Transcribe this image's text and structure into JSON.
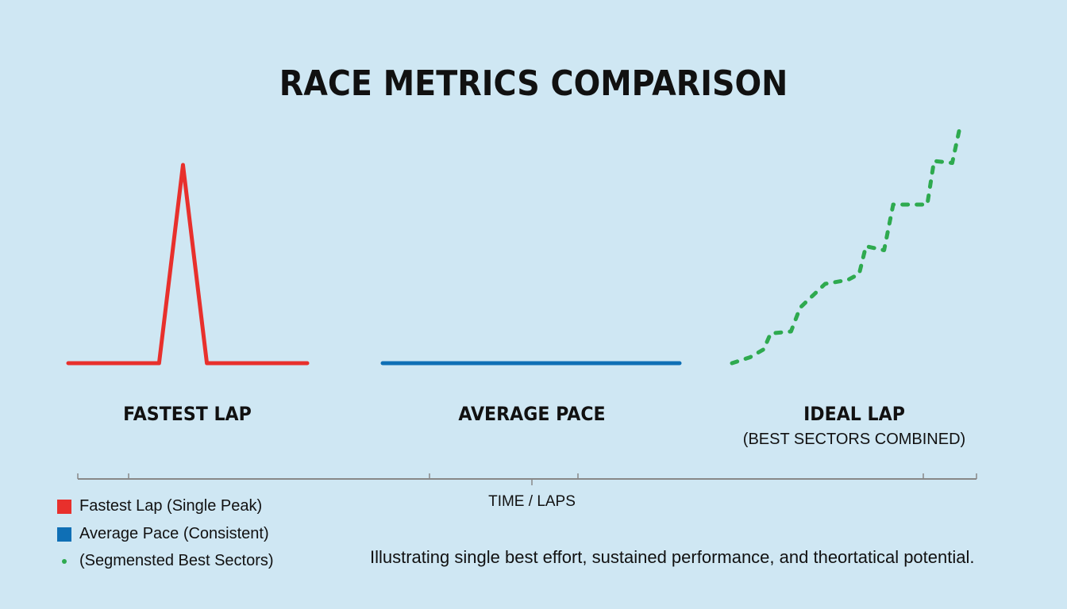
{
  "title": "RACE METRICS COMPARISON",
  "panels": [
    {
      "label": "FASTEST LAP",
      "sublabel": ""
    },
    {
      "label": "AVERAGE PACE",
      "sublabel": ""
    },
    {
      "label": "IDEAL LAP",
      "sublabel": "(BEST SECTORS COMBINED)"
    }
  ],
  "axis": {
    "label": "TIME / LAPS"
  },
  "legend": [
    {
      "label": "Fastest Lap (Single Peak)",
      "color": "#e8302c",
      "marker": "square"
    },
    {
      "label": "Average Pace (Consistent)",
      "color": "#0f6fb5",
      "marker": "square"
    },
    {
      "label": "(Segmensted Best Sectors)",
      "color": "#2eaa4f",
      "marker": "dot"
    }
  ],
  "caption": "Illustrating single best effort, sustained performance, and theortatical potential.",
  "chart_data": {
    "type": "line",
    "title": "RACE METRICS COMPARISON",
    "xlabel": "TIME / LAPS",
    "ylabel": "",
    "grid": false,
    "legend_position": "bottom-left",
    "series": [
      {
        "name": "Fastest Lap (Single Peak)",
        "color": "#e8302c",
        "style": "solid",
        "x": [
          0,
          0.38,
          0.48,
          0.58,
          1
        ],
        "y": [
          0,
          0,
          100,
          0,
          0
        ]
      },
      {
        "name": "Average Pace (Consistent)",
        "color": "#0f6fb5",
        "style": "solid",
        "x": [
          0,
          1
        ],
        "y": [
          0,
          0
        ]
      },
      {
        "name": "(Segmensted Best Sectors)",
        "color": "#2eaa4f",
        "style": "dashed",
        "x": [
          0,
          0.08,
          0.14,
          0.17,
          0.26,
          0.3,
          0.41,
          0.51,
          0.56,
          0.59,
          0.67,
          0.71,
          0.86,
          0.89,
          0.97,
          1
        ],
        "y": [
          0,
          3,
          7,
          15,
          16,
          28,
          40,
          42,
          45,
          59,
          57,
          80,
          80,
          102,
          101,
          117
        ]
      }
    ]
  }
}
